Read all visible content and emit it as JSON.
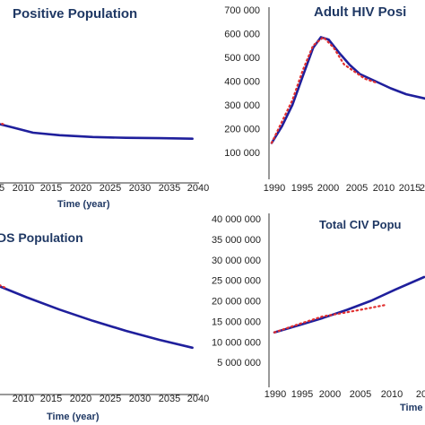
{
  "chart_data": [
    {
      "type": "line",
      "title": "Positive Population",
      "xlabel": "Time (year)",
      "ylabel": "",
      "x_ticks": [
        "5",
        "2010",
        "2015",
        "2020",
        "2025",
        "2030",
        "2035",
        "2040"
      ],
      "y_ticks": [],
      "xlim": [
        2004,
        2041
      ],
      "ylim": [
        0,
        100
      ],
      "series": [
        {
          "values": [
            [
              2004,
              38
            ],
            [
              2007,
              38.5
            ],
            [
              2010,
              36
            ],
            [
              2013,
              33
            ],
            [
              2016,
              30
            ],
            [
              2020,
              28.5
            ],
            [
              2025,
              27.5
            ],
            [
              2030,
              27
            ],
            [
              2035,
              26.8
            ],
            [
              2040,
              26.5
            ]
          ],
          "style": "solid",
          "color": "#1f1f9c"
        },
        {
          "values": [
            [
              2004,
              38
            ],
            [
              2006,
              38.5
            ],
            [
              2008,
              38
            ],
            [
              2010,
              37
            ],
            [
              2011.5,
              35
            ]
          ],
          "style": "dotted",
          "color": "#e03030"
        }
      ]
    },
    {
      "type": "line",
      "title": "Adult HIV Posi",
      "xlabel": "",
      "ylabel": "",
      "x_ticks": [
        "1990",
        "1995",
        "2000",
        "2005",
        "2010",
        "2015",
        "20"
      ],
      "y_ticks": [
        "100 000",
        "200 000",
        "300 000",
        "400 000",
        "500 000",
        "600 000",
        "700 000"
      ],
      "xlim": [
        1990,
        2021
      ],
      "ylim": [
        100000,
        700000
      ],
      "series": [
        {
          "values": [
            [
              1990,
              140000
            ],
            [
              1992,
              210000
            ],
            [
              1994,
              300000
            ],
            [
              1996,
              420000
            ],
            [
              1998,
              540000
            ],
            [
              1999.5,
              585000
            ],
            [
              2001,
              575000
            ],
            [
              2003,
              520000
            ],
            [
              2005,
              470000
            ],
            [
              2007,
              430000
            ],
            [
              2010,
              400000
            ],
            [
              2013,
              370000
            ],
            [
              2016,
              345000
            ],
            [
              2021,
              320000
            ]
          ],
          "style": "solid",
          "color": "#1f1f9c"
        },
        {
          "values": [
            [
              1990,
              140000
            ],
            [
              1992,
              230000
            ],
            [
              1994,
              320000
            ],
            [
              1996,
              445000
            ],
            [
              1998,
              550000
            ],
            [
              2000,
              585000
            ],
            [
              2002,
              540000
            ],
            [
              2004,
              470000
            ],
            [
              2006,
              440000
            ],
            [
              2008,
              410000
            ],
            [
              2010,
              395000
            ]
          ],
          "style": "dotted",
          "color": "#e03030"
        }
      ]
    },
    {
      "type": "line",
      "title": "DS Population",
      "xlabel": "Time (year)",
      "ylabel": "",
      "x_ticks": [
        "2010",
        "2015",
        "2020",
        "2025",
        "2030",
        "2035",
        "2040"
      ],
      "y_ticks": [],
      "xlim": [
        2004,
        2041
      ],
      "ylim": [
        0,
        100
      ],
      "series": [
        {
          "values": [
            [
              2004,
              62
            ],
            [
              2005,
              66
            ],
            [
              2006,
              60
            ],
            [
              2008,
              57
            ],
            [
              2010,
              55
            ],
            [
              2015,
              49
            ],
            [
              2020,
              43.5
            ],
            [
              2025,
              38.5
            ],
            [
              2030,
              34
            ],
            [
              2035,
              30
            ],
            [
              2040,
              26.5
            ]
          ],
          "style": "solid",
          "color": "#1f1f9c"
        },
        {
          "values": [
            [
              2004,
              62
            ],
            [
              2006,
              61
            ],
            [
              2009,
              57
            ],
            [
              2012,
              53
            ]
          ],
          "style": "dotted",
          "color": "#e03030"
        }
      ]
    },
    {
      "type": "line",
      "title": "Total CIV Popu",
      "xlabel": "Time",
      "ylabel": "",
      "x_ticks": [
        "1990",
        "1995",
        "2000",
        "2005",
        "2010",
        "20"
      ],
      "y_ticks": [
        "5 000 000",
        "10 000 000",
        "15 000 000",
        "20 000 000",
        "25 000 000",
        "30 000 000",
        "35 000 000",
        "40 000 000"
      ],
      "xlim": [
        1990,
        2021
      ],
      "ylim": [
        0,
        40000000
      ],
      "series": [
        {
          "values": [
            [
              1990,
              12300000
            ],
            [
              1995,
              14000000
            ],
            [
              2000,
              15800000
            ],
            [
              2005,
              17800000
            ],
            [
              2010,
              20000000
            ],
            [
              2015,
              22700000
            ],
            [
              2021,
              25800000
            ]
          ],
          "style": "solid",
          "color": "#1f1f9c"
        },
        {
          "values": [
            [
              1990,
              12300000
            ],
            [
              1995,
              14300000
            ],
            [
              2000,
              16200000
            ],
            [
              2005,
              17200000
            ],
            [
              2010,
              18300000
            ],
            [
              2013,
              19000000
            ]
          ],
          "style": "dotted",
          "color": "#e03030"
        }
      ]
    }
  ]
}
